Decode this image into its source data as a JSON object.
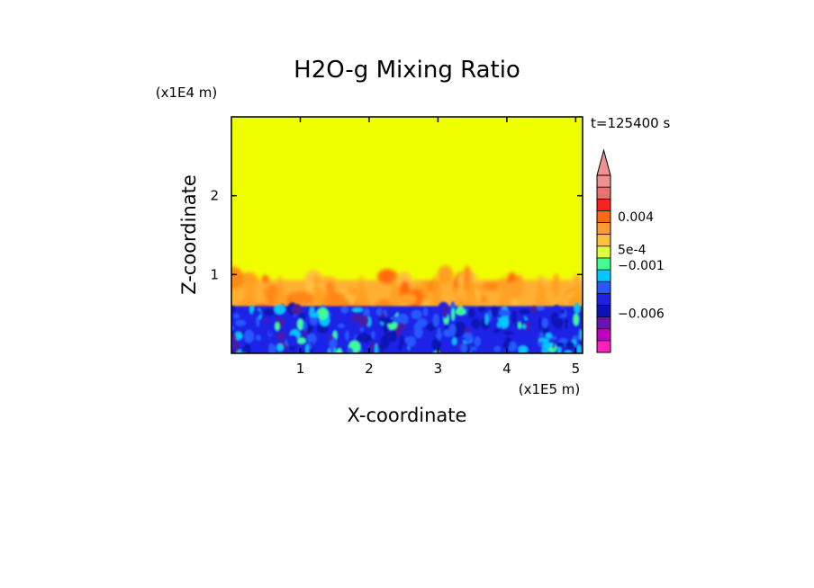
{
  "chart_data": {
    "type": "heatmap",
    "title": "H2O-g Mixing Ratio",
    "xlabel": "X-coordinate",
    "ylabel": "Z-coordinate",
    "x_unit": "(x1E5 m)",
    "y_unit": "(x1E4 m)",
    "time_label": "t=125400 s",
    "xlim": [
      0,
      5.1
    ],
    "ylim": [
      0,
      3
    ],
    "x_ticks": [
      {
        "value": 1,
        "label": "1"
      },
      {
        "value": 2,
        "label": "2"
      },
      {
        "value": 3,
        "label": "3"
      },
      {
        "value": 4,
        "label": "4"
      },
      {
        "value": 5,
        "label": "5"
      }
    ],
    "y_ticks": [
      {
        "value": 1,
        "label": "1"
      },
      {
        "value": 2,
        "label": "2"
      }
    ],
    "regions": {
      "background_color": "#f0ff00",
      "transition_top_z": 1.0,
      "boundary_z": 0.6,
      "lower_colors": [
        "#1e20e6",
        "#0a14b4",
        "#2858ff",
        "#00c8ff",
        "#40ff90",
        "#4a1aa0"
      ],
      "upper_colors": [
        "#ffb030",
        "#ffa020",
        "#ff8818",
        "#ff6a10",
        "#ffc040"
      ]
    },
    "colorbar": {
      "colors": [
        "#ff20c0",
        "#c000c0",
        "#7010b0",
        "#0a14b4",
        "#1e20e6",
        "#2858ff",
        "#00c8ff",
        "#40ff90",
        "#e0ff40",
        "#ffc040",
        "#ff9a30",
        "#ff6a10",
        "#ff2020",
        "#f07070",
        "#f09090"
      ],
      "labels": [
        {
          "text": "0.004",
          "level": 11.5
        },
        {
          "text": "5e-4",
          "level": 8.7
        },
        {
          "text": "−0.001",
          "level": 7.4
        },
        {
          "text": "−0.006",
          "level": 3.3
        }
      ]
    }
  }
}
